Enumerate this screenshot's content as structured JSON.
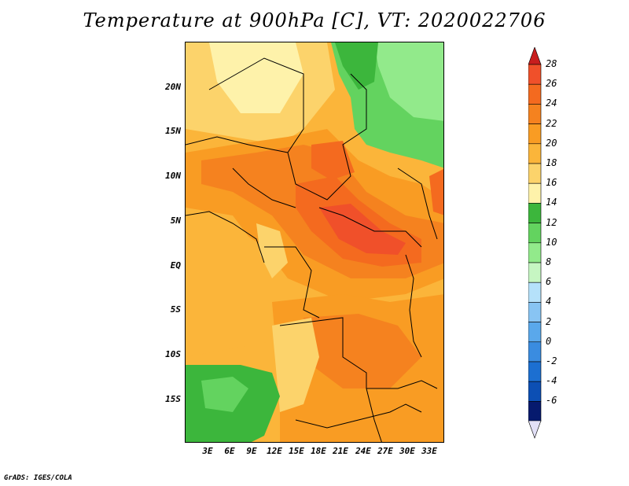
{
  "title": "Temperature at 900hPa [C], VT: 2020022706",
  "credit": "GrADS: IGES/COLA",
  "y_ticks": [
    "20N",
    "15N",
    "10N",
    "5N",
    "EQ",
    "5S",
    "10S",
    "15S"
  ],
  "x_ticks": [
    "3E",
    "6E",
    "9E",
    "12E",
    "15E",
    "18E",
    "21E",
    "24E",
    "27E",
    "30E",
    "33E"
  ],
  "colorbar": {
    "labels": [
      "28",
      "26",
      "24",
      "22",
      "20",
      "18",
      "16",
      "14",
      "12",
      "10",
      "8",
      "6",
      "4",
      "2",
      "0",
      "-2",
      "-4",
      "-6"
    ],
    "colors": [
      "#f0502a",
      "#f46a1f",
      "#f5821f",
      "#f99c23",
      "#fbb53a",
      "#fcd36b",
      "#fef2aa",
      "#3cb63c",
      "#63d35f",
      "#92ea8b",
      "#c6f6c2",
      "#b5e1fa",
      "#88c4f3",
      "#5aa8eb",
      "#3a8ce0",
      "#1c6fd1",
      "#0c4fb4",
      "#061a6e"
    ],
    "top_arrow_color": "#c81e1e",
    "bottom_arrow_color": "#e2e0f7"
  }
}
